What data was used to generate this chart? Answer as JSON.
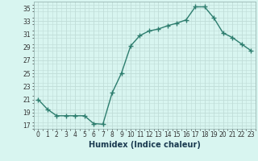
{
  "x": [
    0,
    1,
    2,
    3,
    4,
    5,
    6,
    7,
    8,
    9,
    10,
    11,
    12,
    13,
    14,
    15,
    16,
    17,
    18,
    19,
    20,
    21,
    22,
    23
  ],
  "y": [
    21,
    19.5,
    18.5,
    18.5,
    18.5,
    18.5,
    17.3,
    17.2,
    22.0,
    25.0,
    29.2,
    30.8,
    31.5,
    31.8,
    32.3,
    32.7,
    33.2,
    35.2,
    35.2,
    33.5,
    31.2,
    30.5,
    29.5,
    28.5
  ],
  "line_color": "#2d7d6e",
  "marker": "+",
  "marker_size": 4,
  "line_width": 1.0,
  "background_color": "#d8f5f0",
  "grid_color": "#c0ddd8",
  "xlabel": "Humidex (Indice chaleur)",
  "xlim": [
    -0.5,
    23.5
  ],
  "ylim": [
    16.5,
    36.0
  ],
  "yticks": [
    17,
    19,
    21,
    23,
    25,
    27,
    29,
    31,
    33,
    35
  ],
  "xticks": [
    0,
    1,
    2,
    3,
    4,
    5,
    6,
    7,
    8,
    9,
    10,
    11,
    12,
    13,
    14,
    15,
    16,
    17,
    18,
    19,
    20,
    21,
    22,
    23
  ],
  "tick_label_fontsize": 5.5,
  "xlabel_fontsize": 7.0
}
